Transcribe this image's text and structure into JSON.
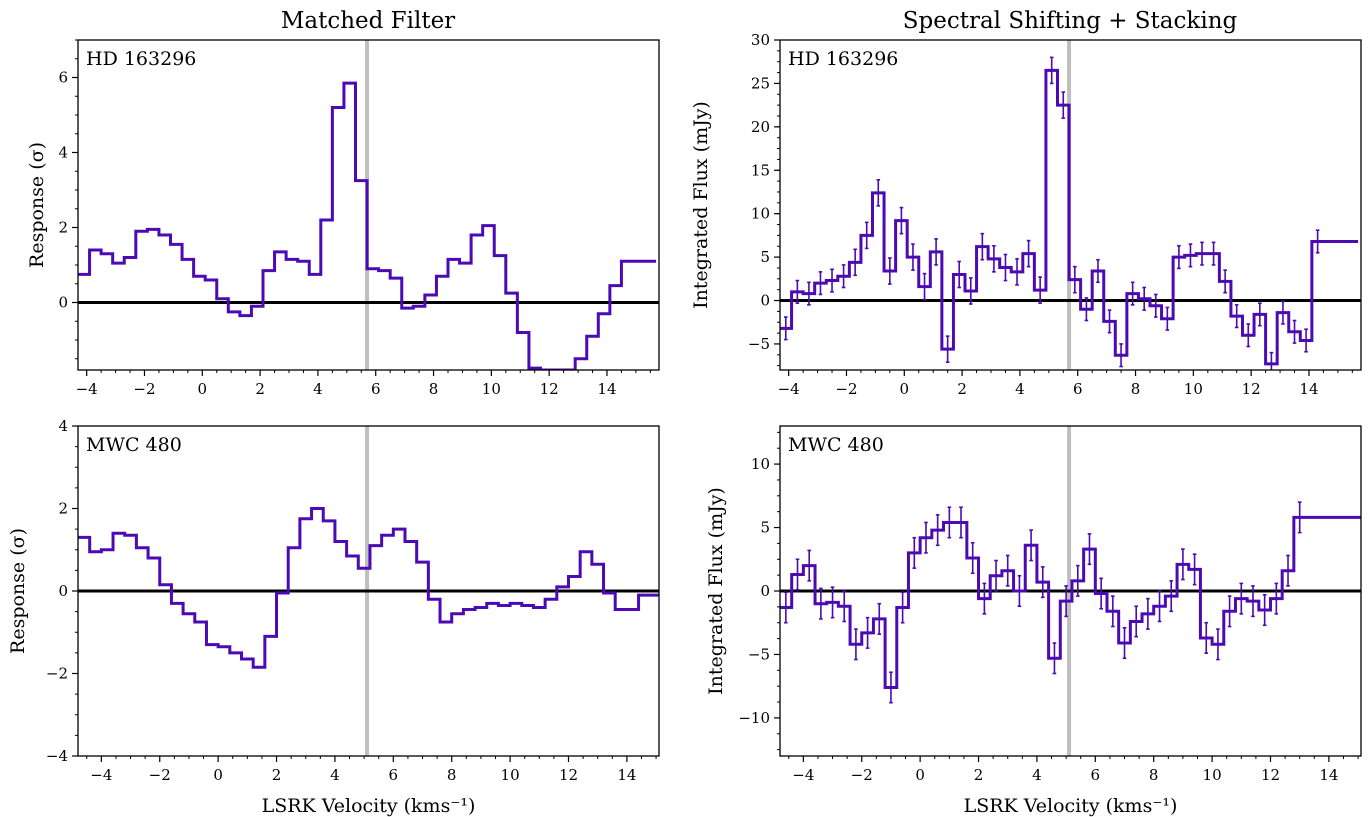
{
  "columns": [
    "Matched Filter",
    "Spectral Shifting + Stacking"
  ],
  "colors": {
    "line": "#4b0ab4",
    "zero": "#000000",
    "marker": "#bfbfbf"
  },
  "chart_data": [
    {
      "type": "line",
      "step": true,
      "title": "Matched Filter",
      "source": "HD 163296",
      "xlabel": "",
      "ylabel": "Response (σ)",
      "xlim": [
        -4.3,
        15.8
      ],
      "ylim": [
        -1.8,
        7.0
      ],
      "xticks": [
        -4,
        -2,
        0,
        2,
        4,
        6,
        8,
        10,
        12,
        14
      ],
      "yticks": [
        0,
        2,
        4,
        6
      ],
      "xtick_labels": [
        "−4",
        "−2",
        "0",
        "2",
        "4",
        "6",
        "8",
        "10",
        "12",
        "14"
      ],
      "ytick_labels": [
        "0",
        "2",
        "4",
        "6"
      ],
      "vline": 5.7,
      "bin": 0.4,
      "x": [
        -4.3,
        -3.9,
        -3.5,
        -3.1,
        -2.7,
        -2.3,
        -1.9,
        -1.5,
        -1.1,
        -0.7,
        -0.3,
        0.1,
        0.5,
        0.9,
        1.3,
        1.7,
        2.1,
        2.5,
        2.9,
        3.3,
        3.7,
        4.1,
        4.5,
        4.9,
        5.3,
        5.7,
        6.1,
        6.5,
        6.9,
        7.3,
        7.7,
        8.1,
        8.5,
        8.9,
        9.3,
        9.7,
        10.1,
        10.5,
        10.9,
        11.3,
        11.7,
        12.1,
        12.5,
        12.9,
        13.3,
        13.7,
        14.1,
        14.5,
        14.9,
        15.3
      ],
      "y": [
        0.75,
        1.4,
        1.3,
        1.05,
        1.2,
        1.9,
        1.95,
        1.8,
        1.55,
        1.15,
        0.7,
        0.6,
        0.1,
        -0.25,
        -0.35,
        -0.1,
        0.85,
        1.35,
        1.15,
        1.1,
        0.75,
        2.2,
        5.2,
        5.85,
        3.25,
        0.9,
        0.85,
        0.65,
        -0.15,
        -0.1,
        0.2,
        0.7,
        1.15,
        1.05,
        1.8,
        2.05,
        1.25,
        0.25,
        -0.8,
        -1.75,
        -1.8,
        -1.8,
        -1.8,
        -1.5,
        -0.9,
        -0.3,
        0.45,
        1.1,
        1.1,
        1.1
      ],
      "errors": []
    },
    {
      "type": "line",
      "step": true,
      "title": "Spectral Shifting + Stacking",
      "source": "HD 163296",
      "xlabel": "",
      "ylabel": "Integrated Flux (mJy)",
      "xlim": [
        -4.3,
        15.8
      ],
      "ylim": [
        -8,
        30
      ],
      "xticks": [
        -4,
        -2,
        0,
        2,
        4,
        6,
        8,
        10,
        12,
        14
      ],
      "yticks": [
        -5,
        0,
        5,
        10,
        15,
        20,
        25,
        30
      ],
      "xtick_labels": [
        "−4",
        "−2",
        "0",
        "2",
        "4",
        "6",
        "8",
        "10",
        "12",
        "14"
      ],
      "ytick_labels": [
        "−5",
        "0",
        "5",
        "10",
        "15",
        "20",
        "25",
        "30"
      ],
      "vline": 5.7,
      "bin": 0.4,
      "x": [
        -4.3,
        -3.9,
        -3.5,
        -3.1,
        -2.7,
        -2.3,
        -1.9,
        -1.5,
        -1.1,
        -0.7,
        -0.3,
        0.1,
        0.5,
        0.9,
        1.3,
        1.7,
        2.1,
        2.5,
        2.9,
        3.3,
        3.7,
        4.1,
        4.5,
        4.9,
        5.3,
        5.7,
        6.1,
        6.5,
        6.9,
        7.3,
        7.7,
        8.1,
        8.5,
        8.9,
        9.3,
        9.7,
        10.1,
        10.5,
        10.9,
        11.3,
        11.7,
        12.1,
        12.5,
        12.9,
        13.3,
        13.7,
        14.1,
        14.5,
        14.9,
        15.3
      ],
      "y": [
        -3.2,
        1.0,
        0.8,
        2.0,
        2.3,
        2.8,
        4.4,
        7.5,
        12.4,
        3.4,
        9.2,
        5.0,
        1.6,
        5.6,
        -5.6,
        3.0,
        1.1,
        6.2,
        4.8,
        3.8,
        3.3,
        5.4,
        1.2,
        26.5,
        22.5,
        2.4,
        -1.0,
        3.4,
        -2.4,
        -6.3,
        0.8,
        0.2,
        -0.6,
        -2.1,
        5.0,
        5.2,
        5.4,
        5.4,
        2.2,
        -1.8,
        -4.0,
        -1.6,
        -7.3,
        -1.4,
        -3.6,
        -4.6,
        6.8,
        6.8,
        6.8,
        6.8
      ],
      "errors": [
        1.3,
        1.3,
        1.3,
        1.3,
        1.3,
        1.3,
        1.5,
        1.5,
        1.5,
        1.5,
        1.5,
        1.5,
        1.5,
        1.5,
        1.5,
        1.5,
        1.5,
        1.5,
        1.5,
        1.5,
        1.5,
        1.5,
        1.5,
        1.5,
        1.5,
        1.5,
        1.3,
        1.3,
        1.3,
        1.3,
        1.3,
        1.3,
        1.3,
        1.3,
        1.3,
        1.3,
        1.3,
        1.3,
        1.3,
        1.3,
        1.3,
        1.3,
        1.3,
        1.3,
        1.3,
        1.3,
        1.3,
        0,
        0,
        0
      ]
    },
    {
      "type": "line",
      "step": true,
      "title": "",
      "source": "MWC 480",
      "xlabel": "LSRK Velocity (kms⁻¹)",
      "ylabel": "Response (σ)",
      "xlim": [
        -4.8,
        15.1
      ],
      "ylim": [
        -4,
        4
      ],
      "xticks": [
        -4,
        -2,
        0,
        2,
        4,
        6,
        8,
        10,
        12,
        14
      ],
      "yticks": [
        -4,
        -2,
        0,
        2,
        4
      ],
      "xtick_labels": [
        "−4",
        "−2",
        "0",
        "2",
        "4",
        "6",
        "8",
        "10",
        "12",
        "14"
      ],
      "ytick_labels": [
        "−4",
        "−2",
        "0",
        "2",
        "4"
      ],
      "vline": 5.1,
      "bin": 0.4,
      "x": [
        -4.8,
        -4.4,
        -4.0,
        -3.6,
        -3.2,
        -2.8,
        -2.4,
        -2.0,
        -1.6,
        -1.2,
        -0.8,
        -0.4,
        0.0,
        0.4,
        0.8,
        1.2,
        1.6,
        2.0,
        2.4,
        2.8,
        3.2,
        3.6,
        4.0,
        4.4,
        4.8,
        5.2,
        5.6,
        6.0,
        6.4,
        6.8,
        7.2,
        7.6,
        8.0,
        8.4,
        8.8,
        9.2,
        9.6,
        10.0,
        10.4,
        10.8,
        11.2,
        11.6,
        12.0,
        12.4,
        12.8,
        13.2,
        13.6,
        14.0,
        14.4,
        14.8
      ],
      "y": [
        1.3,
        0.95,
        1.0,
        1.4,
        1.35,
        1.05,
        0.8,
        0.15,
        -0.3,
        -0.55,
        -0.75,
        -1.3,
        -1.35,
        -1.5,
        -1.65,
        -1.85,
        -1.1,
        -0.05,
        1.05,
        1.75,
        2.0,
        1.7,
        1.2,
        0.85,
        0.55,
        1.1,
        1.35,
        1.5,
        1.2,
        0.7,
        -0.2,
        -0.75,
        -0.55,
        -0.45,
        -0.4,
        -0.3,
        -0.35,
        -0.3,
        -0.35,
        -0.4,
        -0.2,
        0.1,
        0.35,
        0.95,
        0.65,
        -0.05,
        -0.45,
        -0.45,
        -0.1,
        -0.1
      ],
      "errors": []
    },
    {
      "type": "line",
      "step": true,
      "title": "",
      "source": "MWC 480",
      "xlabel": "LSRK Velocity (kms⁻¹)",
      "ylabel": "Integrated Flux (mJy)",
      "xlim": [
        -4.8,
        15.1
      ],
      "ylim": [
        -13,
        13
      ],
      "xticks": [
        -4,
        -2,
        0,
        2,
        4,
        6,
        8,
        10,
        12,
        14
      ],
      "yticks": [
        -10,
        -5,
        0,
        5,
        10
      ],
      "xtick_labels": [
        "−4",
        "−2",
        "0",
        "2",
        "4",
        "6",
        "8",
        "10",
        "12",
        "14"
      ],
      "ytick_labels": [
        "−10",
        "−5",
        "0",
        "5",
        "10"
      ],
      "vline": 5.1,
      "bin": 0.4,
      "x": [
        -4.8,
        -4.4,
        -4.0,
        -3.6,
        -3.2,
        -2.8,
        -2.4,
        -2.0,
        -1.6,
        -1.2,
        -0.8,
        -0.4,
        0.0,
        0.4,
        0.8,
        1.2,
        1.6,
        2.0,
        2.4,
        2.8,
        3.2,
        3.6,
        4.0,
        4.4,
        4.8,
        5.2,
        5.6,
        6.0,
        6.4,
        6.8,
        7.2,
        7.6,
        8.0,
        8.4,
        8.8,
        9.2,
        9.6,
        10.0,
        10.4,
        10.8,
        11.2,
        11.6,
        12.0,
        12.4,
        12.8,
        13.2,
        13.6,
        14.0,
        14.4,
        14.8
      ],
      "y": [
        -1.3,
        1.3,
        2.0,
        -1.0,
        -0.9,
        -1.2,
        -4.2,
        -3.3,
        -2.2,
        -7.6,
        -1.3,
        3.0,
        4.2,
        4.8,
        5.4,
        5.4,
        2.6,
        -0.6,
        1.2,
        1.6,
        0.0,
        3.6,
        0.7,
        -5.3,
        -0.8,
        0.8,
        3.3,
        -0.2,
        -1.6,
        -4.1,
        -2.4,
        -1.8,
        -1.2,
        -0.4,
        2.1,
        1.7,
        -3.7,
        -4.2,
        -1.6,
        -0.6,
        -0.8,
        -1.5,
        -0.6,
        1.6,
        5.8,
        5.8,
        5.8,
        5.8,
        5.8,
        5.8
      ],
      "errors": [
        1.2,
        1.2,
        1.2,
        1.2,
        1.2,
        1.2,
        1.2,
        1.2,
        1.2,
        1.2,
        1.2,
        1.2,
        1.2,
        1.2,
        1.2,
        1.2,
        1.2,
        1.2,
        1.2,
        1.2,
        1.2,
        1.2,
        1.2,
        1.2,
        1.2,
        1.2,
        1.2,
        1.2,
        1.2,
        1.2,
        1.2,
        1.2,
        1.2,
        1.2,
        1.2,
        1.2,
        1.2,
        1.2,
        1.2,
        1.2,
        1.2,
        1.2,
        1.2,
        1.2,
        1.2,
        0,
        0,
        0,
        0,
        0
      ]
    }
  ]
}
